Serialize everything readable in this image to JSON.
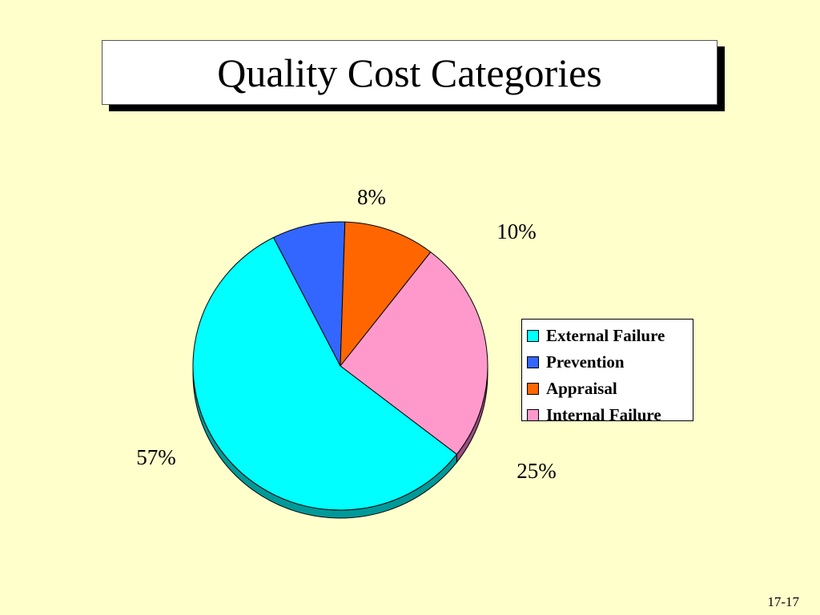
{
  "slide": {
    "title": "Quality Cost Categories",
    "number": "17-17",
    "background": "#ffffcc"
  },
  "chart_data": {
    "type": "pie",
    "title": "",
    "categories": [
      "Prevention",
      "Appraisal",
      "Internal Failure",
      "External Failure"
    ],
    "values": [
      8,
      10,
      25,
      57
    ],
    "labels": [
      "8%",
      "10%",
      "25%",
      "57%"
    ],
    "colors": [
      "#3366ff",
      "#ff6600",
      "#ff99cc",
      "#00ffff"
    ],
    "shadow_colors": [
      "#1a3380",
      "#803300",
      "#994d80",
      "#009999"
    ],
    "legend": {
      "placement": "right",
      "entries": [
        {
          "label": "External Failure",
          "color": "#00ffff"
        },
        {
          "label": "Prevention",
          "color": "#3366ff"
        },
        {
          "label": "Appraisal",
          "color": "#ff6600"
        },
        {
          "label": "Internal Failure",
          "color": "#ff99cc"
        }
      ]
    }
  }
}
